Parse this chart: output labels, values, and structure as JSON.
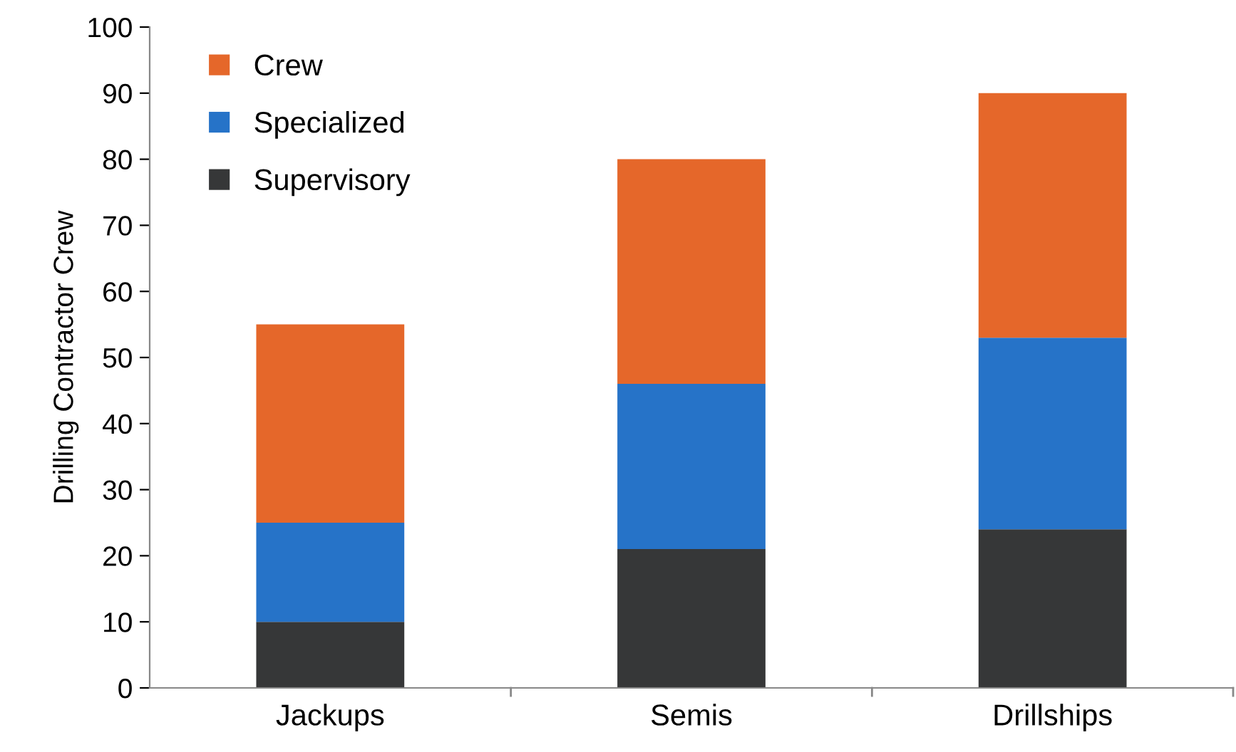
{
  "chart_data": {
    "type": "bar",
    "stacked": true,
    "ylabel": "Drilling Contractor Crew",
    "categories": [
      "Jackups",
      "Semis",
      "Drillships"
    ],
    "series": [
      {
        "name": "Supervisory",
        "color": "#363738",
        "values": [
          10,
          21,
          24
        ]
      },
      {
        "name": "Specialized",
        "color": "#2673c8",
        "values": [
          15,
          25,
          29
        ]
      },
      {
        "name": "Crew",
        "color": "#e5672a",
        "values": [
          30,
          34,
          37
        ]
      }
    ],
    "ylim": [
      0,
      100
    ],
    "yticks": [
      0,
      10,
      20,
      30,
      40,
      50,
      60,
      70,
      80,
      90,
      100
    ],
    "grid": false,
    "legend": "top left"
  }
}
